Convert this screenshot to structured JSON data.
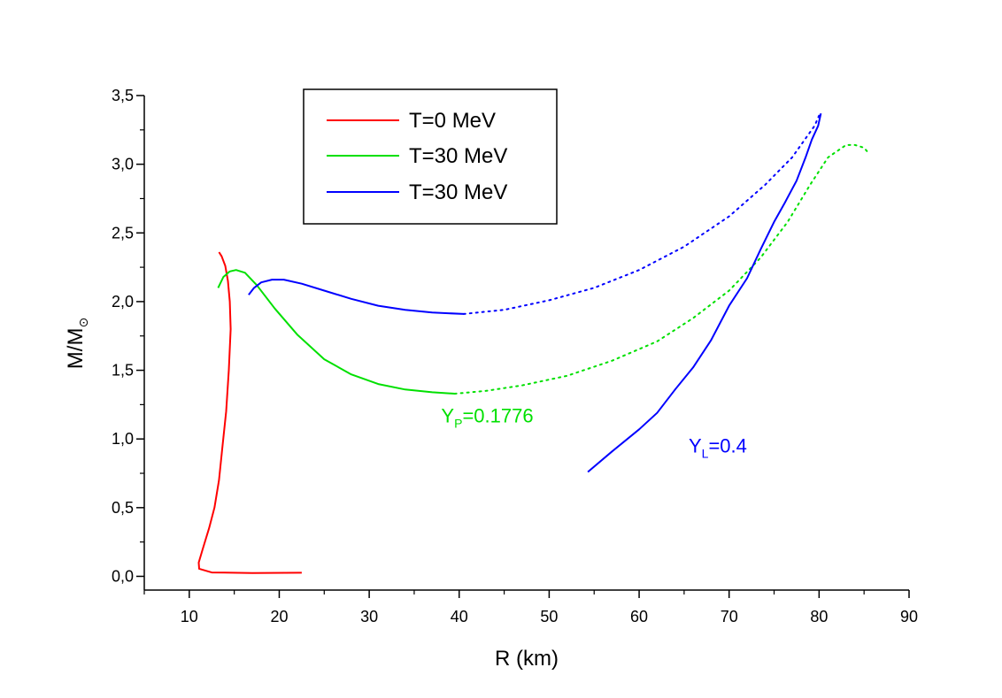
{
  "chart_data": {
    "type": "line",
    "title": "",
    "xlabel": "R (km)",
    "ylabel": {
      "main": "M/M",
      "sub": "⊙"
    },
    "xlim": [
      5,
      90
    ],
    "ylim": [
      -0.1,
      3.5
    ],
    "xticks": [
      10,
      20,
      30,
      40,
      50,
      60,
      70,
      80,
      90
    ],
    "xtick_labels": [
      "10",
      "20",
      "30",
      "40",
      "50",
      "60",
      "70",
      "80",
      "90"
    ],
    "yticks": [
      0.0,
      0.5,
      1.0,
      1.5,
      2.0,
      2.5,
      3.0,
      3.5
    ],
    "ytick_labels": [
      "0,0",
      "0,5",
      "1,0",
      "1,5",
      "2,0",
      "2,5",
      "3,0",
      "3,5"
    ],
    "grid": false,
    "legend_position": "top-left",
    "legend": [
      {
        "label": "T=0 MeV",
        "color": "#ff0000"
      },
      {
        "label": "T=30 MeV",
        "color": "#00e000"
      },
      {
        "label": "T=30 MeV",
        "color": "#0000ff"
      }
    ],
    "series": [
      {
        "name": "T=0 MeV",
        "color": "#ff0000",
        "segments": [
          {
            "style": "solid",
            "points": [
              [
                22.5,
                0.026
              ],
              [
                17,
                0.024
              ],
              [
                12.5,
                0.028
              ],
              [
                11.1,
                0.055
              ],
              [
                11.05,
                0.1
              ],
              [
                11.5,
                0.2
              ],
              [
                12.2,
                0.35
              ],
              [
                12.8,
                0.5
              ],
              [
                13.3,
                0.7
              ],
              [
                13.7,
                0.95
              ],
              [
                14.1,
                1.2
              ],
              [
                14.4,
                1.5
              ],
              [
                14.6,
                1.8
              ],
              [
                14.5,
                2.0
              ],
              [
                14.3,
                2.15
              ],
              [
                14.0,
                2.26
              ],
              [
                13.6,
                2.33
              ],
              [
                13.3,
                2.36
              ]
            ]
          }
        ]
      },
      {
        "name": "T=30 MeV",
        "color": "#00e000",
        "segments": [
          {
            "style": "solid",
            "points": [
              [
                13.2,
                2.1
              ],
              [
                13.8,
                2.18
              ],
              [
                14.5,
                2.22
              ],
              [
                15.2,
                2.23
              ],
              [
                16.2,
                2.21
              ],
              [
                17.5,
                2.12
              ],
              [
                19.5,
                1.95
              ],
              [
                22,
                1.76
              ],
              [
                25,
                1.58
              ],
              [
                28,
                1.47
              ],
              [
                31,
                1.4
              ],
              [
                34,
                1.36
              ],
              [
                37,
                1.34
              ],
              [
                39.5,
                1.33
              ]
            ]
          },
          {
            "style": "dotted",
            "points": [
              [
                39.5,
                1.33
              ],
              [
                43,
                1.35
              ],
              [
                47,
                1.39
              ],
              [
                52,
                1.46
              ],
              [
                57,
                1.57
              ],
              [
                62,
                1.71
              ],
              [
                66,
                1.88
              ],
              [
                70,
                2.08
              ],
              [
                73.5,
                2.32
              ],
              [
                76.5,
                2.58
              ],
              [
                79,
                2.85
              ],
              [
                81,
                3.05
              ],
              [
                83,
                3.14
              ],
              [
                84,
                3.14
              ],
              [
                85,
                3.12
              ],
              [
                85.5,
                3.08
              ]
            ]
          }
        ]
      },
      {
        "name": "T=30 MeV",
        "color": "#0000ff",
        "segments": [
          {
            "style": "solid",
            "points": [
              [
                16.6,
                2.05
              ],
              [
                17.2,
                2.1
              ],
              [
                18,
                2.14
              ],
              [
                19.2,
                2.16
              ],
              [
                20.5,
                2.16
              ],
              [
                22.5,
                2.13
              ],
              [
                25,
                2.08
              ],
              [
                28,
                2.02
              ],
              [
                31,
                1.97
              ],
              [
                34,
                1.94
              ],
              [
                37,
                1.92
              ],
              [
                40.5,
                1.91
              ]
            ]
          },
          {
            "style": "dotted",
            "points": [
              [
                40.5,
                1.91
              ],
              [
                45,
                1.94
              ],
              [
                50,
                2.01
              ],
              [
                55,
                2.1
              ],
              [
                60,
                2.23
              ],
              [
                65,
                2.4
              ],
              [
                70,
                2.62
              ],
              [
                74,
                2.85
              ],
              [
                77,
                3.05
              ],
              [
                79.5,
                3.28
              ],
              [
                80.1,
                3.37
              ]
            ]
          },
          {
            "style": "solid",
            "points": [
              [
                54.3,
                0.76
              ],
              [
                57,
                0.91
              ],
              [
                60,
                1.07
              ],
              [
                62,
                1.19
              ],
              [
                64,
                1.36
              ],
              [
                66,
                1.52
              ],
              [
                68,
                1.72
              ],
              [
                70,
                1.97
              ],
              [
                72,
                2.17
              ],
              [
                73.5,
                2.38
              ],
              [
                75,
                2.58
              ],
              [
                76.2,
                2.72
              ],
              [
                77.5,
                2.88
              ],
              [
                78.5,
                3.05
              ],
              [
                79.2,
                3.18
              ],
              [
                79.9,
                3.28
              ],
              [
                80.2,
                3.37
              ]
            ]
          }
        ]
      }
    ],
    "annotations": [
      {
        "main": "Y",
        "sub": "P",
        "rest": "=0.1776",
        "color": "#00e000",
        "x": 38,
        "y": 1.12
      },
      {
        "main": "Y",
        "sub": "L",
        "rest": "=0.4",
        "color": "#0000ff",
        "x": 65.5,
        "y": 0.9
      }
    ]
  }
}
